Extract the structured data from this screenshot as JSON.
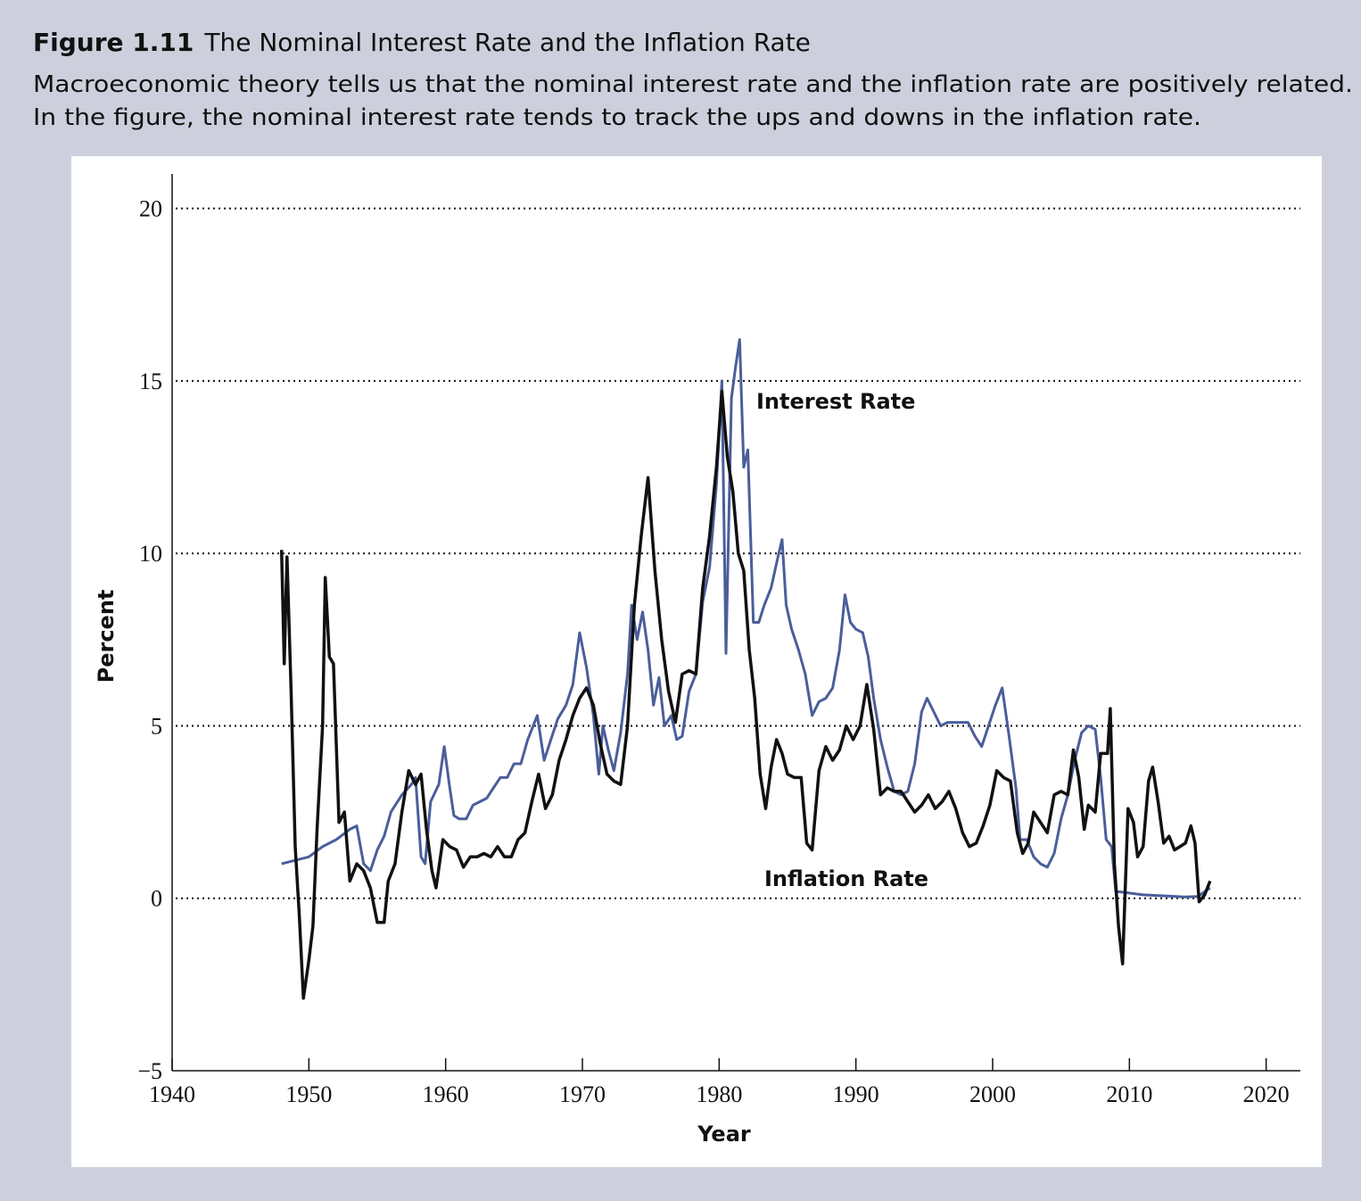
{
  "chart_data": {
    "type": "line",
    "figure_label": "Figure 1.11",
    "title": "The Nominal Interest Rate and the Inflation Rate",
    "subtitle": [
      "Macroeconomic theory tells us that the nominal interest rate and the inflation rate are positively related.",
      "In the figure, the nominal interest rate tends to track the ups and downs in the inflation rate."
    ],
    "x_label": "Year",
    "y_label": "Percent",
    "annotations": [
      "Interest Rate",
      "Inflation Rate"
    ],
    "xlim": [
      1940,
      2022.5
    ],
    "ylim": [
      -5,
      21
    ],
    "xticks": [
      1940,
      1950,
      1960,
      1970,
      1980,
      1990,
      2000,
      2010,
      2020
    ],
    "yticks": [
      {
        "value": -5,
        "label": "−5"
      },
      0,
      5,
      10,
      15,
      20
    ],
    "grid": true,
    "series": [
      {
        "name": "Interest Rate",
        "color": "#4a5e9a",
        "x": [
          1948,
          1949,
          1950,
          1951,
          1952,
          1953,
          1953.5,
          1954,
          1954.5,
          1955,
          1955.5,
          1956,
          1956.8,
          1957.5,
          1957.8,
          1958.2,
          1958.5,
          1958.9,
          1959.5,
          1959.9,
          1960.3,
          1960.6,
          1961,
          1961.5,
          1962,
          1962.5,
          1963,
          1963.5,
          1964,
          1964.5,
          1965,
          1965.5,
          1966,
          1966.7,
          1967.2,
          1967.7,
          1968.2,
          1968.8,
          1969.3,
          1969.8,
          1970.3,
          1970.8,
          1971.2,
          1971.5,
          1971.9,
          1972.3,
          1972.8,
          1973.3,
          1973.6,
          1974,
          1974.4,
          1974.8,
          1975.2,
          1975.6,
          1976,
          1976.5,
          1976.9,
          1977.3,
          1977.8,
          1978.3,
          1978.8,
          1979.3,
          1979.8,
          1980.2,
          1980.5,
          1980.9,
          1981.2,
          1981.5,
          1981.8,
          1982.1,
          1982.5,
          1982.9,
          1983.3,
          1983.8,
          1984.3,
          1984.6,
          1984.9,
          1985.3,
          1985.8,
          1986.3,
          1986.8,
          1987.3,
          1987.8,
          1988.3,
          1988.8,
          1989.2,
          1989.6,
          1990,
          1990.5,
          1990.9,
          1991.3,
          1991.8,
          1992.3,
          1992.8,
          1993.3,
          1993.8,
          1994.3,
          1994.8,
          1995.2,
          1995.7,
          1996.2,
          1996.7,
          1997.2,
          1997.7,
          1998.2,
          1998.7,
          1999.2,
          1999.7,
          2000.2,
          2000.7,
          2001.2,
          2001.7,
          2002,
          2002.5,
          2003,
          2003.5,
          2004,
          2004.5,
          2005,
          2005.5,
          2006,
          2006.5,
          2007,
          2007.5,
          2007.9,
          2008.3,
          2008.7,
          2009,
          2010,
          2011,
          2012,
          2013,
          2014,
          2015,
          2015.9
        ],
        "values": [
          1.0,
          1.1,
          1.2,
          1.5,
          1.7,
          2.0,
          2.1,
          1.0,
          0.8,
          1.4,
          1.8,
          2.5,
          3.0,
          3.3,
          3.5,
          1.2,
          1.0,
          2.8,
          3.3,
          4.4,
          3.2,
          2.4,
          2.3,
          2.3,
          2.7,
          2.8,
          2.9,
          3.2,
          3.5,
          3.5,
          3.9,
          3.9,
          4.6,
          5.3,
          4.0,
          4.6,
          5.2,
          5.6,
          6.2,
          7.7,
          6.7,
          5.3,
          3.6,
          5.0,
          4.3,
          3.7,
          4.8,
          6.5,
          8.5,
          7.5,
          8.3,
          7.2,
          5.6,
          6.4,
          5.0,
          5.3,
          4.6,
          4.7,
          6.0,
          6.5,
          8.6,
          9.6,
          12.0,
          15.0,
          7.1,
          14.5,
          15.4,
          16.2,
          12.5,
          13.0,
          8.0,
          8.0,
          8.5,
          9.0,
          9.9,
          10.4,
          8.5,
          7.8,
          7.2,
          6.5,
          5.3,
          5.7,
          5.8,
          6.1,
          7.2,
          8.8,
          8.0,
          7.8,
          7.7,
          7.0,
          5.8,
          4.6,
          3.8,
          3.1,
          3.0,
          3.1,
          3.9,
          5.4,
          5.8,
          5.4,
          5.0,
          5.1,
          5.1,
          5.1,
          5.1,
          4.7,
          4.4,
          5.0,
          5.6,
          6.1,
          4.7,
          3.2,
          1.7,
          1.7,
          1.2,
          1.0,
          0.9,
          1.3,
          2.3,
          3.0,
          4.0,
          4.8,
          5.0,
          4.9,
          3.5,
          1.7,
          1.5,
          0.2,
          0.15,
          0.1,
          0.08,
          0.06,
          0.04,
          0.05,
          0.3
        ]
      },
      {
        "name": "Inflation Rate",
        "color": "#111111",
        "x": [
          1948,
          1948.2,
          1948.4,
          1948.7,
          1949,
          1949.3,
          1949.6,
          1950,
          1950.3,
          1950.6,
          1951,
          1951.2,
          1951.5,
          1951.8,
          1952.2,
          1952.6,
          1953,
          1953.5,
          1954,
          1954.5,
          1955,
          1955.5,
          1955.8,
          1956.3,
          1956.8,
          1957.3,
          1957.8,
          1958.2,
          1958.6,
          1959,
          1959.3,
          1959.8,
          1960.3,
          1960.8,
          1961.3,
          1961.8,
          1962.3,
          1962.8,
          1963.3,
          1963.8,
          1964.3,
          1964.8,
          1965.3,
          1965.8,
          1966.3,
          1966.8,
          1967.3,
          1967.8,
          1968.3,
          1968.8,
          1969.3,
          1969.8,
          1970.3,
          1970.8,
          1971.3,
          1971.8,
          1972.3,
          1972.8,
          1973.3,
          1973.8,
          1974.3,
          1974.8,
          1975.3,
          1975.8,
          1976.3,
          1976.8,
          1977.3,
          1977.8,
          1978.3,
          1978.8,
          1979.3,
          1979.8,
          1980.2,
          1980.6,
          1981,
          1981.4,
          1981.8,
          1982.2,
          1982.6,
          1983,
          1983.4,
          1983.8,
          1984.2,
          1984.6,
          1985,
          1985.5,
          1986,
          1986.4,
          1986.8,
          1987.3,
          1987.8,
          1988.3,
          1988.8,
          1989.3,
          1989.8,
          1990.3,
          1990.8,
          1991.3,
          1991.8,
          1992.3,
          1992.8,
          1993.3,
          1993.8,
          1994.3,
          1994.8,
          1995.3,
          1995.8,
          1996.3,
          1996.8,
          1997.3,
          1997.8,
          1998.3,
          1998.8,
          1999.3,
          1999.8,
          2000.3,
          2000.8,
          2001.3,
          2001.8,
          2002.2,
          2002.6,
          2003,
          2003.5,
          2004,
          2004.5,
          2005,
          2005.5,
          2005.9,
          2006.3,
          2006.7,
          2007,
          2007.5,
          2007.9,
          2008.4,
          2008.6,
          2008.9,
          2009.2,
          2009.5,
          2009.9,
          2010.3,
          2010.6,
          2011,
          2011.4,
          2011.7,
          2012.1,
          2012.5,
          2012.9,
          2013.3,
          2013.7,
          2014.1,
          2014.5,
          2014.8,
          2015.1,
          2015.5,
          2015.9
        ],
        "values": [
          10.1,
          6.8,
          9.9,
          6.0,
          1.5,
          -0.5,
          -2.9,
          -1.8,
          -0.8,
          2.0,
          5.0,
          9.3,
          7.0,
          6.8,
          2.2,
          2.5,
          0.5,
          1.0,
          0.8,
          0.3,
          -0.7,
          -0.7,
          0.5,
          1.0,
          2.5,
          3.7,
          3.3,
          3.6,
          2.0,
          0.8,
          0.3,
          1.7,
          1.5,
          1.4,
          0.9,
          1.2,
          1.2,
          1.3,
          1.2,
          1.5,
          1.2,
          1.2,
          1.7,
          1.9,
          2.8,
          3.6,
          2.6,
          3.0,
          4.0,
          4.6,
          5.3,
          5.8,
          6.1,
          5.6,
          4.5,
          3.6,
          3.4,
          3.3,
          5.0,
          8.5,
          10.5,
          12.2,
          9.5,
          7.5,
          6.0,
          5.1,
          6.5,
          6.6,
          6.5,
          9.0,
          10.5,
          12.5,
          14.7,
          12.8,
          11.8,
          10.0,
          9.5,
          7.2,
          5.8,
          3.6,
          2.6,
          3.8,
          4.6,
          4.2,
          3.6,
          3.5,
          3.5,
          1.6,
          1.4,
          3.7,
          4.4,
          4.0,
          4.3,
          5.0,
          4.6,
          5.0,
          6.2,
          4.9,
          3.0,
          3.2,
          3.1,
          3.1,
          2.8,
          2.5,
          2.7,
          3.0,
          2.6,
          2.8,
          3.1,
          2.6,
          1.9,
          1.5,
          1.6,
          2.1,
          2.7,
          3.7,
          3.5,
          3.4,
          1.9,
          1.3,
          1.6,
          2.5,
          2.2,
          1.9,
          3.0,
          3.1,
          3.0,
          4.3,
          3.5,
          2.0,
          2.7,
          2.5,
          4.2,
          4.2,
          5.5,
          1.0,
          -0.8,
          -1.9,
          2.6,
          2.2,
          1.2,
          1.5,
          3.4,
          3.8,
          2.8,
          1.6,
          1.8,
          1.4,
          1.5,
          1.6,
          2.1,
          1.6,
          -0.1,
          0.1,
          0.5
        ]
      }
    ]
  }
}
